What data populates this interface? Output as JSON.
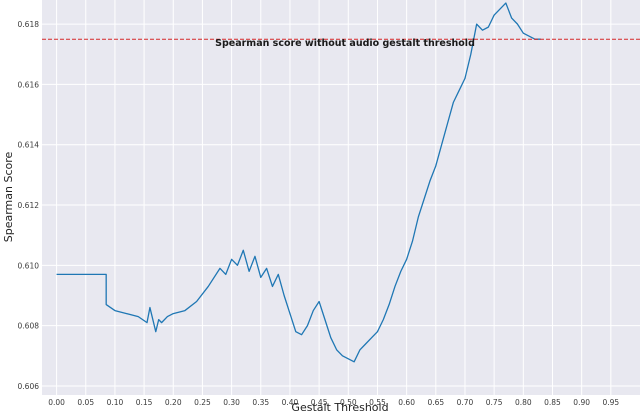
{
  "chart_data": {
    "type": "line",
    "title": "",
    "xlabel": "Gestalt Threshold",
    "ylabel": "Spearman Score",
    "xlim": [
      -0.025,
      1.0
    ],
    "ylim": [
      0.6057,
      0.6188
    ],
    "x_ticks": [
      0.0,
      0.05,
      0.1,
      0.15,
      0.2,
      0.25,
      0.3,
      0.35,
      0.4,
      0.45,
      0.5,
      0.55,
      0.6,
      0.65,
      0.7,
      0.75,
      0.8,
      0.85,
      0.9,
      0.95
    ],
    "x_tick_labels": [
      "0.00",
      "0.05",
      "0.10",
      "0.15",
      "0.20",
      "0.25",
      "0.30",
      "0.35",
      "0.40",
      "0.45",
      "0.50",
      "0.55",
      "0.60",
      "0.65",
      "0.70",
      "0.75",
      "0.80",
      "0.85",
      "0.90",
      "0.95"
    ],
    "y_ticks": [
      0.606,
      0.608,
      0.61,
      0.612,
      0.614,
      0.616,
      0.618
    ],
    "y_tick_labels": [
      "0.606",
      "0.608",
      "0.610",
      "0.612",
      "0.614",
      "0.616",
      "0.618"
    ],
    "grid": true,
    "series": [
      {
        "color": "#1f77b4",
        "x": [
          0.0,
          0.085,
          0.085,
          0.1,
          0.12,
          0.14,
          0.155,
          0.16,
          0.17,
          0.175,
          0.18,
          0.19,
          0.2,
          0.22,
          0.24,
          0.26,
          0.28,
          0.29,
          0.3,
          0.31,
          0.32,
          0.33,
          0.34,
          0.35,
          0.36,
          0.37,
          0.38,
          0.39,
          0.4,
          0.41,
          0.42,
          0.43,
          0.44,
          0.45,
          0.46,
          0.47,
          0.48,
          0.49,
          0.5,
          0.51,
          0.52,
          0.53,
          0.54,
          0.55,
          0.56,
          0.57,
          0.58,
          0.59,
          0.6,
          0.61,
          0.62,
          0.63,
          0.64,
          0.65,
          0.66,
          0.67,
          0.68,
          0.69,
          0.7,
          0.71,
          0.72,
          0.73,
          0.74,
          0.745,
          0.75,
          0.76,
          0.77,
          0.78,
          0.79,
          0.8,
          0.81,
          0.82,
          0.83
        ],
        "y": [
          0.6097,
          0.6097,
          0.6087,
          0.6085,
          0.6084,
          0.6083,
          0.6081,
          0.6086,
          0.6078,
          0.6082,
          0.6081,
          0.6083,
          0.6084,
          0.6085,
          0.6088,
          0.6093,
          0.6099,
          0.6097,
          0.6102,
          0.61,
          0.6105,
          0.6098,
          0.6103,
          0.6096,
          0.6099,
          0.6093,
          0.6097,
          0.609,
          0.6084,
          0.6078,
          0.6077,
          0.608,
          0.6085,
          0.6088,
          0.6082,
          0.6076,
          0.6072,
          0.607,
          0.6069,
          0.6068,
          0.6072,
          0.6074,
          0.6076,
          0.6078,
          0.6082,
          0.6087,
          0.6093,
          0.6098,
          0.6102,
          0.6108,
          0.6116,
          0.6122,
          0.6128,
          0.6133,
          0.614,
          0.6147,
          0.6154,
          0.6158,
          0.6162,
          0.617,
          0.618,
          0.6178,
          0.6179,
          0.6181,
          0.6183,
          0.6185,
          0.6187,
          0.6182,
          0.618,
          0.6177,
          0.6176,
          0.6175,
          0.6175
        ]
      }
    ],
    "reference_line": {
      "y": 0.6175,
      "label": "Spearman score without audio gestalt threshold",
      "color": "#d62728",
      "style": "dashed"
    }
  }
}
